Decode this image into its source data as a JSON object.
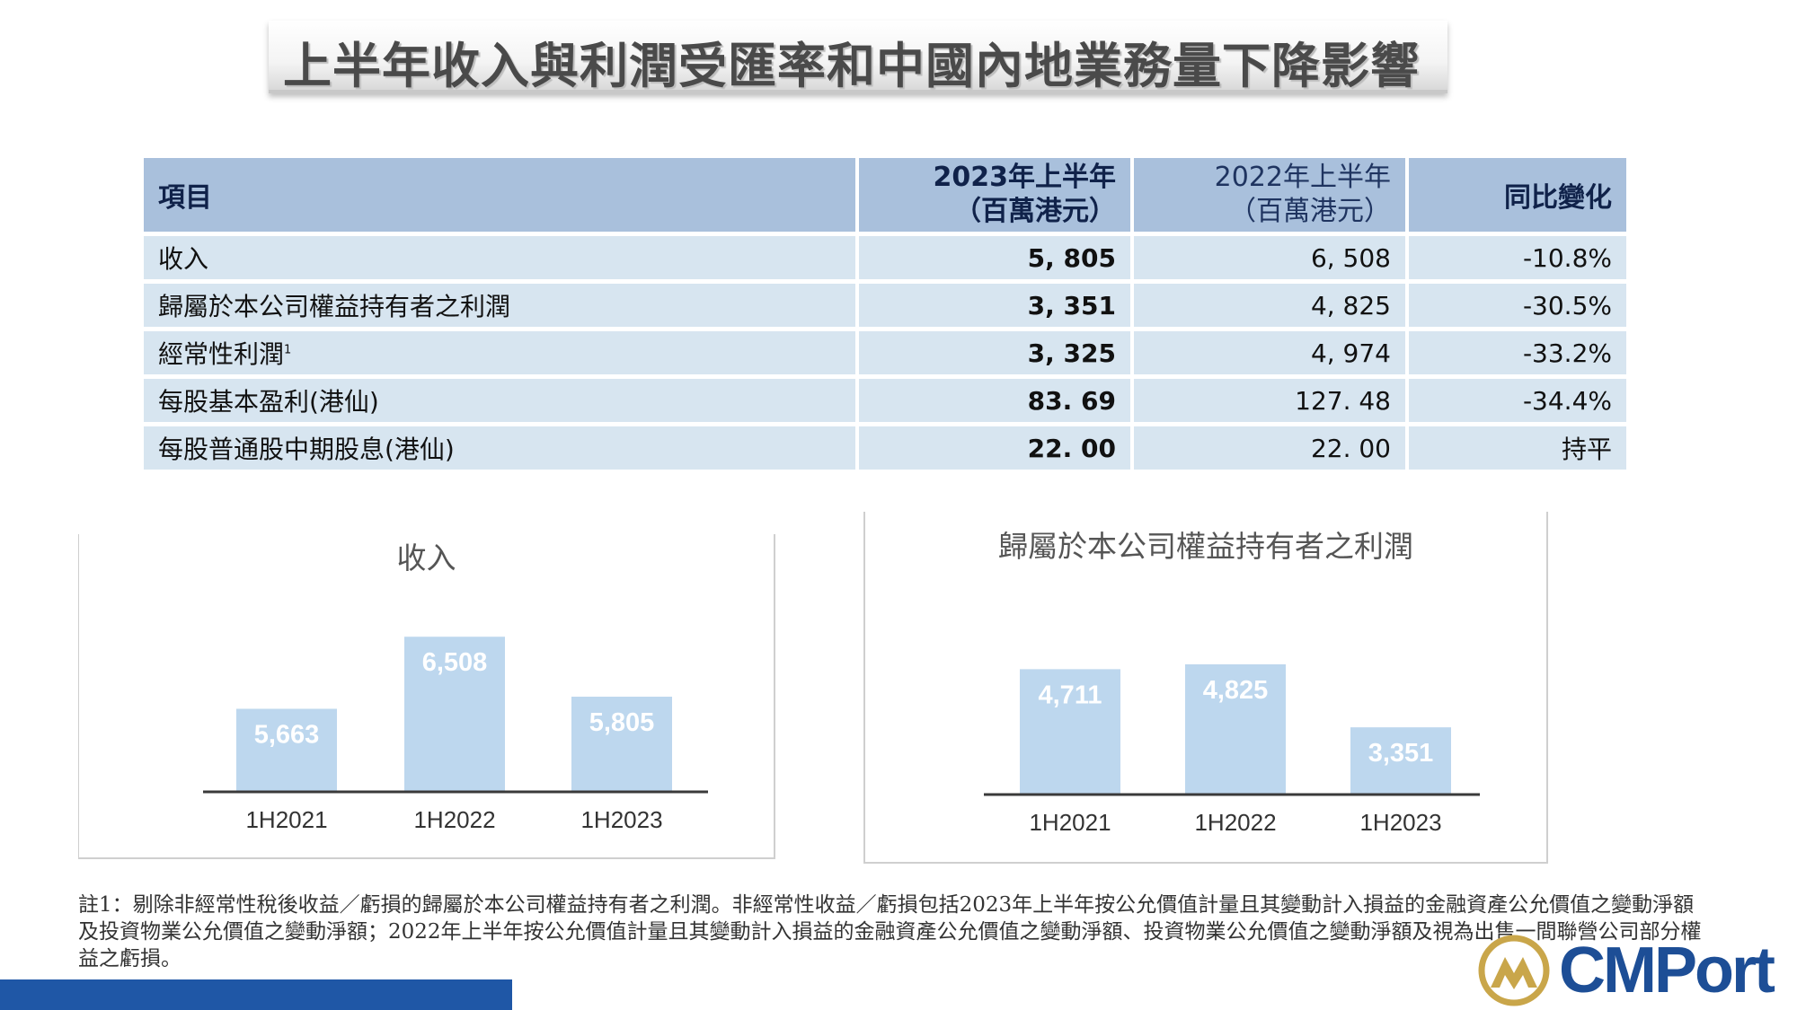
{
  "title": "上半年收入與利潤受匯率和中國內地業務量下降影響",
  "table": {
    "headers": {
      "item": "項目",
      "current_line1": "2023年上半年",
      "current_line2": "（百萬港元）",
      "prior_line1": "2022年上半年",
      "prior_line2": "（百萬港元）",
      "change": "同比變化"
    },
    "rows": [
      {
        "item": "收入",
        "sup": "",
        "current": "5, 805",
        "prior": "6, 508",
        "change": "-10.8%"
      },
      {
        "item": "歸屬於本公司權益持有者之利潤",
        "sup": "",
        "current": "3, 351",
        "prior": "4, 825",
        "change": "-30.5%"
      },
      {
        "item": "經常性利潤",
        "sup": "1",
        "current": "3, 325",
        "prior": "4, 974",
        "change": "-33.2%"
      },
      {
        "item": "每股基本盈利(港仙)",
        "sup": "",
        "current": "83. 69",
        "prior": "127. 48",
        "change": "-34.4%"
      },
      {
        "item": "每股普通股中期股息(港仙)",
        "sup": "",
        "current": "22. 00",
        "prior": "22. 00",
        "change": "持平"
      }
    ]
  },
  "chart_data": [
    {
      "type": "bar",
      "title": "收入",
      "categories": [
        "1H2021",
        "1H2022",
        "1H2023"
      ],
      "values": [
        5663,
        6508,
        5805
      ],
      "labels": [
        "5,663",
        "6,508",
        "5,805"
      ],
      "color": "#bdd7ee",
      "ylim": [
        4700,
        6700
      ],
      "grid": false,
      "legend": "none"
    },
    {
      "type": "bar",
      "title": "歸屬於本公司權益持有者之利潤",
      "categories": [
        "1H2021",
        "1H2022",
        "1H2023"
      ],
      "values": [
        4711,
        4825,
        3351
      ],
      "labels": [
        "4,711",
        "4,825",
        "3,351"
      ],
      "color": "#bdd7ee",
      "ylim": [
        1800,
        4950
      ],
      "grid": false,
      "legend": "none"
    }
  ],
  "footnote": "註1：剔除非經常性稅後收益／虧損的歸屬於本公司權益持有者之利潤。非經常性收益／虧損包括2023年上半年按公允價值計量且其變動計入損益的金融資產公允價值之變動淨額及投資物業公允價值之變動淨額；2022年上半年按公允價值計量且其變動計入損益的金融資產公允價值之變動淨額、投資物業公允價值之變動淨額及視為出售一間聯營公司部分權益之虧損。",
  "logo": {
    "text": "CMPort"
  },
  "colors": {
    "header": "#a9c0dc",
    "row": "#d7e5f0",
    "bar": "#bdd7ee",
    "brand": "#1f57a6"
  }
}
